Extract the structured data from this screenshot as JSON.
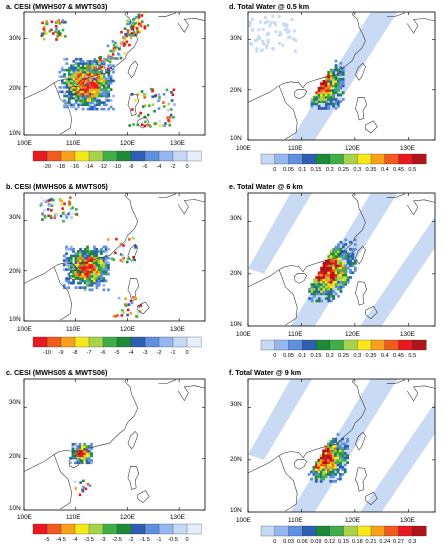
{
  "figure": {
    "panels": [
      {
        "id": "a",
        "title": "a. CESI (MWHS07 & MWTS03)",
        "type": "cesi",
        "colorbar": {
          "labels": [
            "-20",
            "-18",
            "-16",
            "-14",
            "-12",
            "-10",
            "-8",
            "-6",
            "-4",
            "-2",
            "0"
          ]
        }
      },
      {
        "id": "b",
        "title": "b. CESI (MWHS06 & MWTS05)",
        "type": "cesi",
        "colorbar": {
          "labels": [
            "-10",
            "-9",
            "-8",
            "-7",
            "-6",
            "-5",
            "-4",
            "-3",
            "-2",
            "-1",
            "0"
          ]
        }
      },
      {
        "id": "c",
        "title": "c. CESI (MWHS05 & MWTS06)",
        "type": "cesi",
        "colorbar": {
          "labels": [
            "-5",
            "-4.5",
            "-4",
            "-3.5",
            "-3",
            "-2.5",
            "-2",
            "-1.5",
            "-1",
            "-0.5",
            "0"
          ]
        }
      },
      {
        "id": "d",
        "title": "d. Total Water @ 0.5 km",
        "type": "water",
        "colorbar": {
          "labels": [
            "0",
            "0.05",
            "0.1",
            "0.15",
            "0.2",
            "0.25",
            "0.3",
            "0.35",
            "0.4",
            "0.45",
            "0.5"
          ]
        }
      },
      {
        "id": "e",
        "title": "e. Total Water @ 6 km",
        "type": "water",
        "colorbar": {
          "labels": [
            "0",
            "0.05",
            "0.1",
            "0.15",
            "0.2",
            "0.25",
            "0.3",
            "0.35",
            "0.4",
            "0.45",
            "0.5"
          ]
        }
      },
      {
        "id": "f",
        "title": "f. Total Water @ 9 km",
        "type": "water",
        "colorbar": {
          "labels": [
            "0",
            "0.03",
            "0.06",
            "0.09",
            "0.12",
            "0.15",
            "0.18",
            "0.21",
            "0.24",
            "0.27",
            "0.3"
          ]
        }
      }
    ],
    "axes": {
      "x_ticks": [
        "100E",
        "110E",
        "120E",
        "130E"
      ],
      "y_ticks": [
        "10N",
        "20N",
        "30N"
      ]
    },
    "palette": {
      "cesi": [
        "#e8191f",
        "#f25b1e",
        "#f7a11b",
        "#f7e81a",
        "#a7d34a",
        "#3fae49",
        "#1d8a3a",
        "#2f5fb3",
        "#5f8fe0",
        "#95b6ee",
        "#c5d8f5",
        "#e6eefb"
      ],
      "water": [
        "#c5d8f5",
        "#95b6ee",
        "#5f8fe0",
        "#2f5fb3",
        "#1d8a3a",
        "#3fae49",
        "#a7d34a",
        "#f7e81a",
        "#f7a11b",
        "#f25b1e",
        "#e8191f",
        "#b0141a"
      ]
    }
  },
  "chart_data": [
    {
      "type": "heatmap",
      "title": "a. CESI (MWHS07 & MWTS03)",
      "x_ticks": [
        "100E",
        "110E",
        "120E",
        "130E"
      ],
      "y_ticks": [
        "10N",
        "20N",
        "30N"
      ],
      "colorbar_levels": [
        -20,
        -18,
        -16,
        -14,
        -12,
        -10,
        -8,
        -6,
        -4,
        -2,
        0
      ],
      "storm_center": [
        112,
        20.5
      ],
      "storm_radius_deg": 3.8,
      "peak_value": -20
    },
    {
      "type": "heatmap",
      "title": "b. CESI (MWHS06 & MWTS05)",
      "x_ticks": [
        "100E",
        "110E",
        "120E",
        "130E"
      ],
      "y_ticks": [
        "10N",
        "20N",
        "30N"
      ],
      "colorbar_levels": [
        -10,
        -9,
        -8,
        -7,
        -6,
        -5,
        -4,
        -3,
        -2,
        -1,
        0
      ],
      "storm_center": [
        112,
        20.5
      ],
      "storm_radius_deg": 3.2,
      "peak_value": -10
    },
    {
      "type": "heatmap",
      "title": "c. CESI (MWHS05 & MWTS06)",
      "x_ticks": [
        "100E",
        "110E",
        "120E",
        "130E"
      ],
      "y_ticks": [
        "10N",
        "20N",
        "30N"
      ],
      "colorbar_levels": [
        -5,
        -4.5,
        -4,
        -3.5,
        -3,
        -2.5,
        -2,
        -1.5,
        -1,
        -0.5,
        0
      ],
      "storm_center": [
        111,
        20.8
      ],
      "storm_radius_deg": 1.6,
      "peak_value": -5
    },
    {
      "type": "heatmap",
      "title": "d. Total Water @ 0.5 km",
      "x_ticks": [
        "100E",
        "110E",
        "120E",
        "130E"
      ],
      "y_ticks": [
        "10N",
        "20N",
        "30N"
      ],
      "colorbar_levels": [
        0,
        0.05,
        0.1,
        0.15,
        0.2,
        0.25,
        0.3,
        0.35,
        0.4,
        0.45,
        0.5
      ],
      "storm_center": [
        113,
        21
      ],
      "storm_radius_deg": 3.5,
      "peak_value": 0.5
    },
    {
      "type": "heatmap",
      "title": "e. Total Water @ 6 km",
      "x_ticks": [
        "100E",
        "110E",
        "120E",
        "130E"
      ],
      "y_ticks": [
        "10N",
        "20N",
        "30N"
      ],
      "colorbar_levels": [
        0,
        0.05,
        0.1,
        0.15,
        0.2,
        0.25,
        0.3,
        0.35,
        0.4,
        0.45,
        0.5
      ],
      "storm_center": [
        114,
        20.5
      ],
      "storm_radius_deg": 4.2,
      "peak_value": 0.5
    },
    {
      "type": "heatmap",
      "title": "f. Total Water @ 9 km",
      "x_ticks": [
        "100E",
        "110E",
        "120E",
        "130E"
      ],
      "y_ticks": [
        "10N",
        "20N",
        "30N"
      ],
      "colorbar_levels": [
        0,
        0.03,
        0.06,
        0.09,
        0.12,
        0.15,
        0.18,
        0.21,
        0.24,
        0.27,
        0.3
      ],
      "storm_center": [
        114,
        20.3
      ],
      "storm_radius_deg": 3.3,
      "peak_value": 0.3
    }
  ]
}
